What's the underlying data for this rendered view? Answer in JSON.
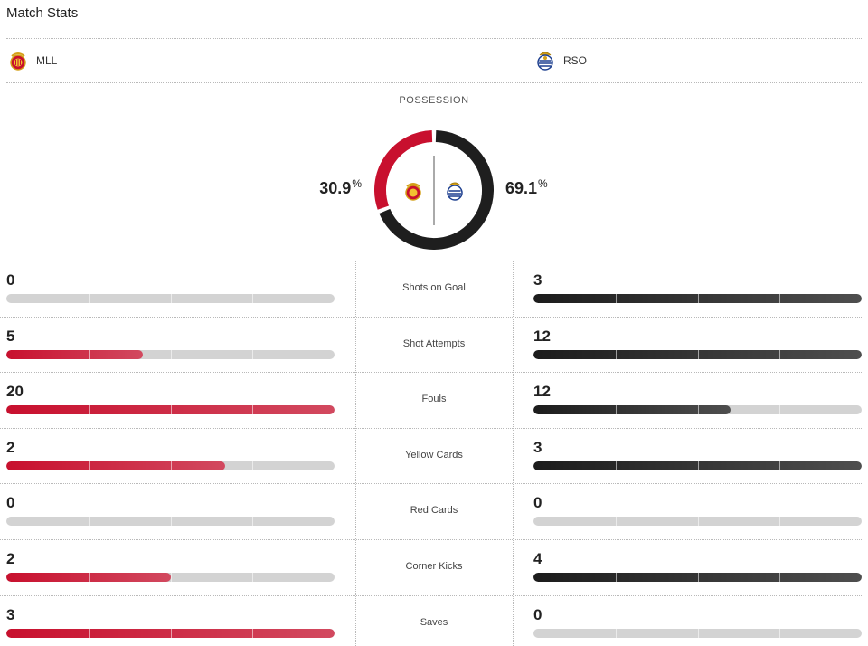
{
  "header": {
    "title": "Match Stats"
  },
  "teams": {
    "home": {
      "abbr": "MLL",
      "color": "#c8102e"
    },
    "away": {
      "abbr": "RSO",
      "color": "#222222"
    }
  },
  "possession": {
    "label": "POSSESSION",
    "home_value": "30.9",
    "away_value": "69.1",
    "unit": "%",
    "home_fraction": 0.309,
    "away_fraction": 0.691
  },
  "stats": [
    {
      "label": "Shots on Goal",
      "home": 0,
      "away": 3
    },
    {
      "label": "Shot Attempts",
      "home": 5,
      "away": 12
    },
    {
      "label": "Fouls",
      "home": 20,
      "away": 12
    },
    {
      "label": "Yellow Cards",
      "home": 2,
      "away": 3
    },
    {
      "label": "Red Cards",
      "home": 0,
      "away": 0
    },
    {
      "label": "Corner Kicks",
      "home": 2,
      "away": 4
    },
    {
      "label": "Saves",
      "home": 3,
      "away": 0
    }
  ]
}
